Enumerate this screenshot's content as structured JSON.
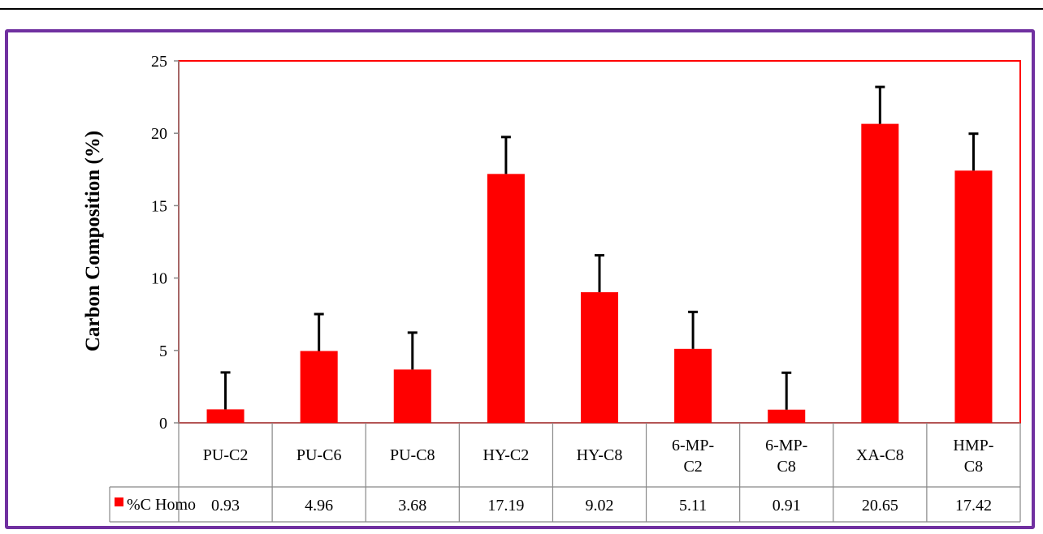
{
  "chart_data": {
    "type": "bar",
    "categories": [
      "PU-C2",
      "PU-C6",
      "PU-C8",
      "HY-C2",
      "HY-C8",
      "6-MP-C2",
      "6-MP-C8",
      "XA-C8",
      "HMP-C8"
    ],
    "category_lines": [
      [
        "PU-C2"
      ],
      [
        "PU-C6"
      ],
      [
        "PU-C8"
      ],
      [
        "HY-C2"
      ],
      [
        "HY-C8"
      ],
      [
        "6-MP-",
        "C2"
      ],
      [
        "6-MP-",
        "C8"
      ],
      [
        "XA-C8"
      ],
      [
        "HMP-",
        "C8"
      ]
    ],
    "series": [
      {
        "name": "%C Homo",
        "values": [
          0.93,
          4.96,
          3.68,
          17.19,
          9.02,
          5.11,
          0.91,
          20.65,
          17.42
        ],
        "value_labels": [
          "0.93",
          "4.96",
          "3.68",
          "17.19",
          "9.02",
          "5.11",
          "0.91",
          "20.65",
          "17.42"
        ],
        "error_plus": [
          2.55,
          2.55,
          2.55,
          2.55,
          2.55,
          2.55,
          2.55,
          2.55,
          2.55
        ],
        "color": "#ff0000"
      }
    ],
    "ylabel": "Carbon Composition (%)",
    "ylim": [
      0,
      25
    ],
    "yticks": [
      0,
      5,
      10,
      15,
      20,
      25
    ],
    "legend_placement": "data-table",
    "plot_border_color": "#ff0000",
    "grid": false
  }
}
